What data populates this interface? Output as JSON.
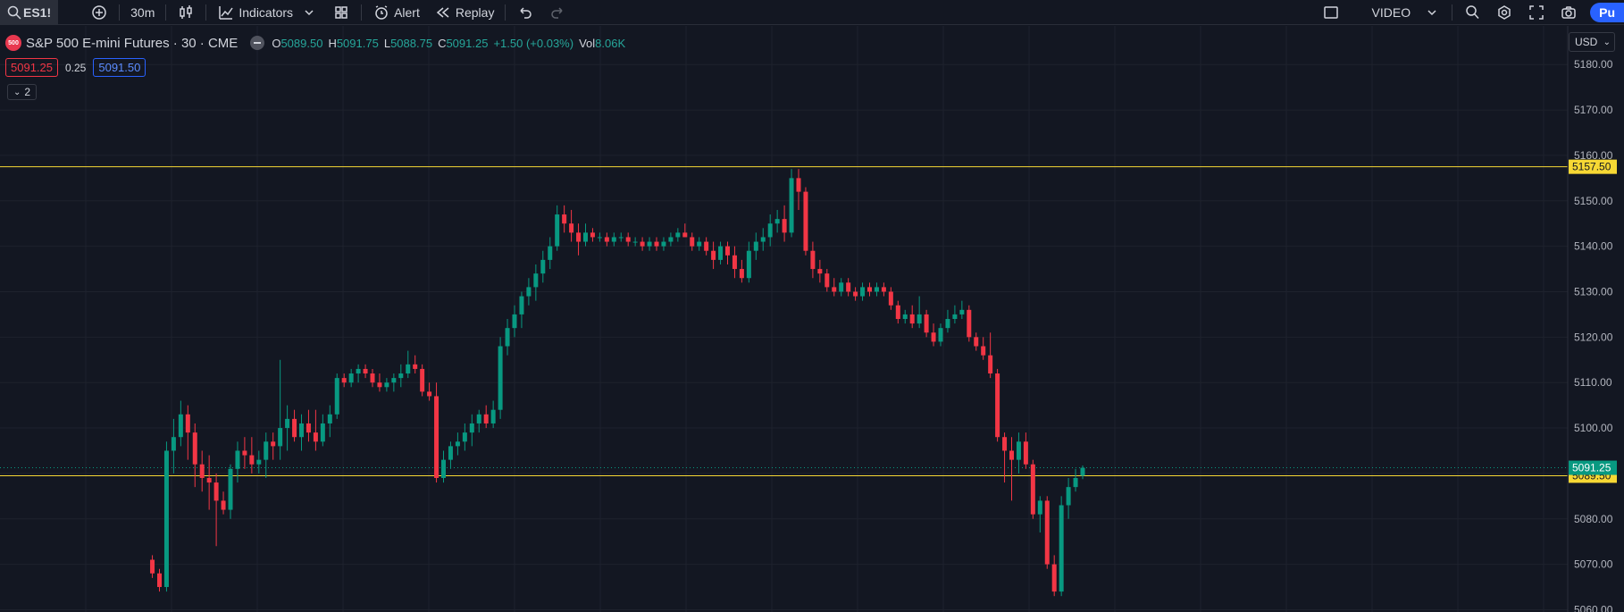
{
  "toolbar": {
    "symbol": "ES1!",
    "interval": "30m",
    "indicators_label": "Indicators",
    "alert_label": "Alert",
    "replay_label": "Replay",
    "video_label": "VIDEO",
    "publish_label": "Pu"
  },
  "legend": {
    "badge": "500",
    "title": "S&P 500 E-mini Futures · 30 · CME",
    "open_label": "O",
    "open": "5089.50",
    "high_label": "H",
    "high": "5091.75",
    "low_label": "L",
    "low": "5088.75",
    "close_label": "C",
    "close": "5091.25",
    "change": "+1.50 (+0.03%)",
    "vol_label": "Vol",
    "vol": "8.06K"
  },
  "order": {
    "sell_price": "5091.25",
    "spread": "0.25",
    "buy_price": "5091.50"
  },
  "collapse_count": "2",
  "currency": "USD",
  "colors": {
    "up": "#089981",
    "down": "#f23645",
    "line": "#f7d834",
    "bg": "#131722",
    "grid": "#1e222d"
  },
  "chart_data": {
    "type": "candlestick",
    "symbol": "ES1!",
    "interval": "30",
    "y_ticks": [
      5060,
      5070,
      5080,
      5090,
      5100,
      5110,
      5120,
      5130,
      5140,
      5150,
      5160,
      5170,
      5180
    ],
    "y_tick_labels": [
      "5060.00",
      "5070.00",
      "5080.00",
      "5090.00",
      "5100.00",
      "5110.00",
      "5120.00",
      "5130.00",
      "5140.00",
      "5150.00",
      "5160.00",
      "5170.00",
      "5180.00"
    ],
    "ylim": [
      5059.5,
      5188.5
    ],
    "horizontal_lines": [
      {
        "price": 5157.5,
        "label": "5157.50"
      },
      {
        "price": 5089.5,
        "label": "5089.50"
      }
    ],
    "last_price": {
      "price": 5091.25,
      "label": "5091.25"
    },
    "candles": [
      [
        5071,
        5072,
        5067,
        5068
      ],
      [
        5068,
        5069,
        5064,
        5065
      ],
      [
        5065,
        5097,
        5064,
        5095
      ],
      [
        5095,
        5102,
        5090,
        5098
      ],
      [
        5098,
        5106,
        5096,
        5103
      ],
      [
        5103,
        5105,
        5093,
        5099
      ],
      [
        5099,
        5101,
        5087,
        5092
      ],
      [
        5092,
        5095,
        5086,
        5089
      ],
      [
        5089,
        5094,
        5082,
        5088
      ],
      [
        5088,
        5090,
        5074,
        5084
      ],
      [
        5084,
        5086,
        5081,
        5082
      ],
      [
        5082,
        5092,
        5080,
        5091
      ],
      [
        5091,
        5097,
        5088,
        5095
      ],
      [
        5095,
        5098,
        5091,
        5094
      ],
      [
        5094,
        5098,
        5090,
        5092
      ],
      [
        5092,
        5095,
        5090,
        5093
      ],
      [
        5093,
        5099,
        5089,
        5097
      ],
      [
        5097,
        5099,
        5093,
        5096
      ],
      [
        5096,
        5115,
        5093,
        5100
      ],
      [
        5100,
        5105,
        5095,
        5102
      ],
      [
        5102,
        5104,
        5097,
        5098
      ],
      [
        5098,
        5103,
        5095,
        5101
      ],
      [
        5101,
        5104,
        5097,
        5099
      ],
      [
        5099,
        5104,
        5095,
        5097
      ],
      [
        5097,
        5103,
        5096,
        5101
      ],
      [
        5101,
        5105,
        5098,
        5103
      ],
      [
        5103,
        5112,
        5102,
        5111
      ],
      [
        5111,
        5112,
        5109,
        5110
      ],
      [
        5110,
        5113,
        5109,
        5112
      ],
      [
        5112,
        5114,
        5110,
        5113
      ],
      [
        5113,
        5114,
        5111,
        5112
      ],
      [
        5112,
        5113,
        5109,
        5110
      ],
      [
        5110,
        5112,
        5108,
        5109
      ],
      [
        5109,
        5111,
        5108,
        5110
      ],
      [
        5110,
        5112,
        5108,
        5111
      ],
      [
        5111,
        5114,
        5109,
        5112
      ],
      [
        5112,
        5117,
        5111,
        5114
      ],
      [
        5114,
        5116,
        5112,
        5113
      ],
      [
        5113,
        5114,
        5107,
        5108
      ],
      [
        5108,
        5110,
        5106,
        5107
      ],
      [
        5107,
        5110,
        5088,
        5089
      ],
      [
        5089,
        5095,
        5088,
        5093
      ],
      [
        5093,
        5097,
        5091,
        5096
      ],
      [
        5096,
        5099,
        5094,
        5097
      ],
      [
        5097,
        5101,
        5095,
        5099
      ],
      [
        5099,
        5103,
        5096,
        5101
      ],
      [
        5101,
        5104,
        5099,
        5103
      ],
      [
        5103,
        5105,
        5100,
        5101
      ],
      [
        5101,
        5106,
        5100,
        5104
      ],
      [
        5104,
        5120,
        5102,
        5118
      ],
      [
        5118,
        5124,
        5116,
        5122
      ],
      [
        5122,
        5127,
        5120,
        5125
      ],
      [
        5125,
        5130,
        5122,
        5129
      ],
      [
        5129,
        5133,
        5127,
        5131
      ],
      [
        5131,
        5136,
        5128,
        5134
      ],
      [
        5134,
        5139,
        5132,
        5137
      ],
      [
        5137,
        5142,
        5135,
        5140
      ],
      [
        5140,
        5149,
        5139,
        5147
      ],
      [
        5147,
        5149,
        5143,
        5145
      ],
      [
        5145,
        5148,
        5141,
        5143
      ],
      [
        5143,
        5145,
        5138,
        5141
      ],
      [
        5141,
        5145,
        5140,
        5143
      ],
      [
        5143,
        5144,
        5141,
        5142
      ],
      [
        5142,
        5143,
        5141,
        5142
      ],
      [
        5142,
        5143,
        5140,
        5141
      ],
      [
        5141,
        5143,
        5140,
        5142
      ],
      [
        5142,
        5143,
        5141,
        5142
      ],
      [
        5142,
        5143,
        5140,
        5141
      ],
      [
        5141,
        5142,
        5140,
        5141
      ],
      [
        5141,
        5142,
        5139,
        5140
      ],
      [
        5140,
        5142,
        5139,
        5141
      ],
      [
        5141,
        5142,
        5139,
        5140
      ],
      [
        5140,
        5142,
        5139,
        5141
      ],
      [
        5141,
        5143,
        5140,
        5142
      ],
      [
        5142,
        5144,
        5141,
        5143
      ],
      [
        5143,
        5145,
        5142,
        5142
      ],
      [
        5142,
        5143,
        5139,
        5140
      ],
      [
        5140,
        5142,
        5139,
        5141
      ],
      [
        5141,
        5142,
        5138,
        5139
      ],
      [
        5139,
        5141,
        5135,
        5137
      ],
      [
        5137,
        5141,
        5136,
        5140
      ],
      [
        5140,
        5141,
        5136,
        5138
      ],
      [
        5138,
        5140,
        5133,
        5135
      ],
      [
        5135,
        5137,
        5132,
        5133
      ],
      [
        5133,
        5141,
        5132,
        5139
      ],
      [
        5139,
        5143,
        5137,
        5141
      ],
      [
        5141,
        5144,
        5139,
        5142
      ],
      [
        5142,
        5147,
        5140,
        5145
      ],
      [
        5145,
        5148,
        5143,
        5146
      ],
      [
        5146,
        5149,
        5141,
        5143
      ],
      [
        5143,
        5157,
        5142,
        5155
      ],
      [
        5155,
        5157,
        5148,
        5152
      ],
      [
        5152,
        5153,
        5138,
        5139
      ],
      [
        5139,
        5141,
        5133,
        5135
      ],
      [
        5135,
        5137,
        5132,
        5134
      ],
      [
        5134,
        5135,
        5130,
        5131
      ],
      [
        5131,
        5133,
        5129,
        5130
      ],
      [
        5130,
        5133,
        5129,
        5132
      ],
      [
        5132,
        5133,
        5129,
        5130
      ],
      [
        5130,
        5131,
        5128,
        5129
      ],
      [
        5129,
        5132,
        5128,
        5131
      ],
      [
        5131,
        5132,
        5129,
        5130
      ],
      [
        5130,
        5132,
        5129,
        5131
      ],
      [
        5131,
        5132,
        5129,
        5130
      ],
      [
        5130,
        5131,
        5126,
        5127
      ],
      [
        5127,
        5128,
        5123,
        5124
      ],
      [
        5124,
        5126,
        5123,
        5125
      ],
      [
        5125,
        5127,
        5122,
        5123
      ],
      [
        5123,
        5129,
        5122,
        5125
      ],
      [
        5125,
        5126,
        5120,
        5121
      ],
      [
        5121,
        5123,
        5118,
        5119
      ],
      [
        5119,
        5123,
        5118,
        5122
      ],
      [
        5122,
        5126,
        5121,
        5124
      ],
      [
        5124,
        5127,
        5123,
        5125
      ],
      [
        5125,
        5128,
        5124,
        5126
      ],
      [
        5126,
        5127,
        5119,
        5120
      ],
      [
        5120,
        5121,
        5117,
        5118
      ],
      [
        5118,
        5120,
        5115,
        5116
      ],
      [
        5116,
        5121,
        5111,
        5112
      ],
      [
        5112,
        5113,
        5097,
        5098
      ],
      [
        5098,
        5099,
        5088,
        5095
      ],
      [
        5095,
        5098,
        5084,
        5093
      ],
      [
        5093,
        5099,
        5090,
        5097
      ],
      [
        5097,
        5099,
        5091,
        5092
      ],
      [
        5092,
        5093,
        5080,
        5081
      ],
      [
        5081,
        5085,
        5077,
        5084
      ],
      [
        5084,
        5085,
        5069,
        5070
      ],
      [
        5070,
        5072,
        5063,
        5064
      ],
      [
        5064,
        5085,
        5063,
        5083
      ],
      [
        5083,
        5089,
        5080,
        5087
      ],
      [
        5087,
        5091,
        5086,
        5089
      ],
      [
        5089.5,
        5091.75,
        5088.75,
        5091.25
      ]
    ]
  }
}
